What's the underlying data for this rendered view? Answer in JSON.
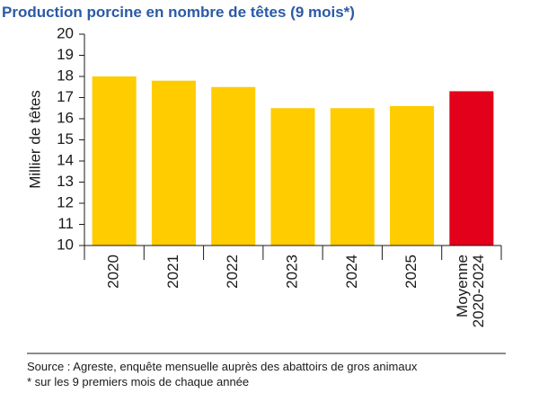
{
  "chart_data": {
    "type": "bar",
    "title": "Production porcine en nombre de têtes (9 mois*)",
    "y_label": "Millier de têtes",
    "categories": [
      "2020",
      "2021",
      "2022",
      "2023",
      "2024",
      "2025",
      "Moyenne 2020-2024"
    ],
    "values": [
      18.0,
      17.8,
      17.5,
      16.5,
      16.5,
      16.6,
      17.3
    ],
    "colors": [
      "#ffcc00",
      "#ffcc00",
      "#ffcc00",
      "#ffcc00",
      "#ffcc00",
      "#ffcc00",
      "#e2001a"
    ],
    "ylim": [
      10,
      20
    ],
    "yticks": [
      10,
      11,
      12,
      13,
      14,
      15,
      16,
      17,
      18,
      19,
      20
    ],
    "grid": false,
    "notes": [
      "Source : Agreste, enquête mensuelle auprès des abattoirs de gros animaux",
      "* sur les 9 premiers mois de chaque année"
    ]
  }
}
